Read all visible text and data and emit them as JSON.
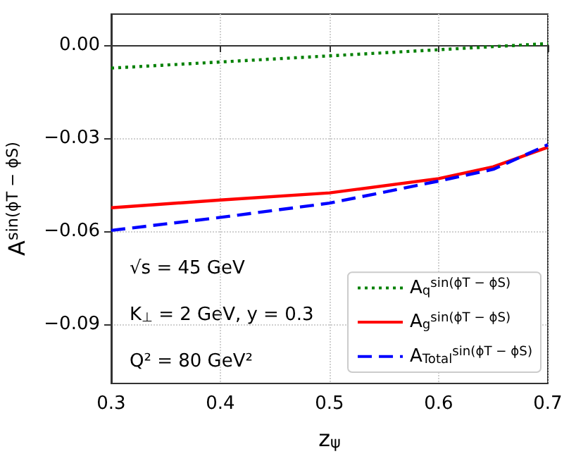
{
  "chart_data": {
    "type": "line",
    "xlabel": "z$_{ψ}$",
    "ylabel": "A$^{sin(ϕT − ϕS)}$",
    "x": [
      0.3,
      0.4,
      0.5,
      0.6,
      0.65,
      0.7
    ],
    "series": [
      {
        "name": "A$_{q}$$^{sin(ϕT − ϕS)}$",
        "color": "#008000",
        "line_style": "dotted",
        "x": [
          0.3,
          0.7
        ],
        "values": [
          -0.0074,
          0.0005
        ]
      },
      {
        "name": "A$_{g}$$^{sin(ϕT − ϕS)}$",
        "color": "#ff0000",
        "line_style": "solid",
        "values": [
          -0.0524,
          -0.0499,
          -0.0476,
          -0.043,
          -0.0392,
          -0.0329
        ]
      },
      {
        "name": "A$_{Total}$$^{sin(ϕT − ϕS)}$",
        "color": "#0000ff",
        "line_style": "dashed",
        "values": [
          -0.0597,
          -0.0555,
          -0.0509,
          -0.0438,
          -0.04,
          -0.0321
        ]
      }
    ],
    "xlim": [
      0.3,
      0.7
    ],
    "xticks": [
      0.3,
      0.4,
      0.5,
      0.6,
      0.7
    ],
    "ylim": [
      -0.109,
      0.01
    ],
    "yticks": [
      {
        "value": 0,
        "label": "0.00"
      },
      {
        "value": -0.03,
        "label": "−0.03"
      },
      {
        "value": -0.06,
        "label": "−0.06"
      },
      {
        "value": -0.09,
        "label": "−0.09"
      }
    ],
    "annotations": [
      "√s = 45 GeV",
      "K$_{⊥}$ = 2 GeV, y = 0.3",
      "Q² = 80 GeV²"
    ],
    "grid": true,
    "legend": "bottom right",
    "marker": "none"
  }
}
